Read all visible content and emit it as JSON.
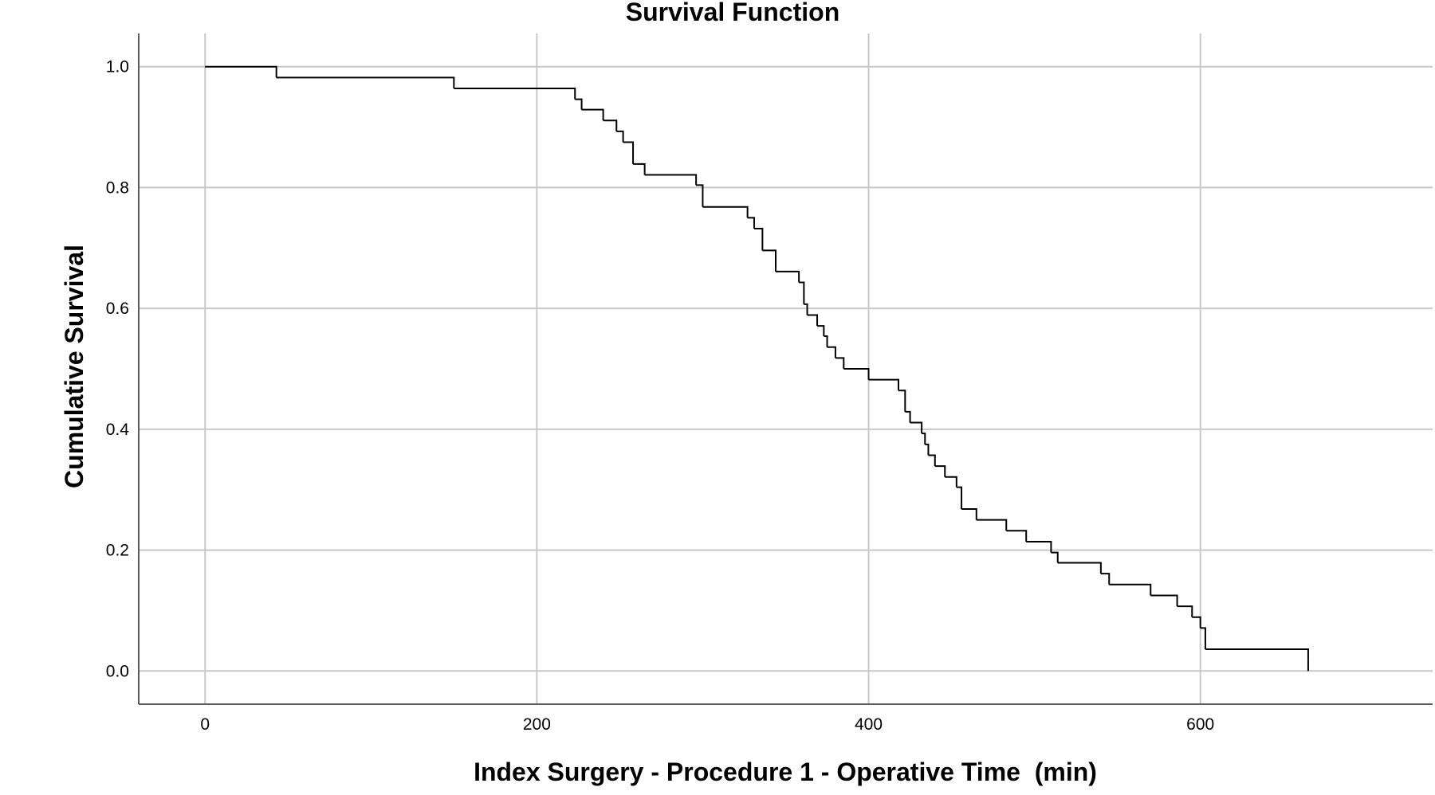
{
  "chart_data": {
    "type": "line",
    "title": "Survival Function",
    "xlabel": "Index Surgery - Procedure 1 - Operative Time  (min)",
    "ylabel": "Cumulative Survival",
    "xlim": [
      -40,
      740
    ],
    "ylim": [
      -0.055,
      1.055
    ],
    "x_ticks": [
      0,
      200,
      400,
      600
    ],
    "x_tick_labels": [
      "0",
      "200",
      "400",
      "600"
    ],
    "y_ticks": [
      0.0,
      0.2,
      0.4,
      0.6,
      0.8,
      1.0
    ],
    "y_tick_labels": [
      "0.0",
      "0.2",
      "0.4",
      "0.6",
      "0.8",
      "1.0"
    ],
    "grid": true,
    "step": true,
    "series": [
      {
        "x": [
          0,
          43,
          150,
          223,
          227,
          240,
          248,
          252,
          258,
          265,
          270,
          296,
          300,
          327,
          331,
          336,
          344,
          350,
          358,
          361,
          363,
          369,
          373,
          375,
          380,
          385,
          400,
          418,
          422,
          425,
          432,
          434,
          436,
          440,
          446,
          453,
          456,
          465,
          483,
          495,
          510,
          514,
          540,
          545,
          570,
          586,
          595,
          600,
          603,
          665
        ],
        "y": [
          1.0,
          0.982,
          0.964,
          0.946,
          0.929,
          0.911,
          0.893,
          0.875,
          0.839,
          0.821,
          0.821,
          0.804,
          0.768,
          0.75,
          0.732,
          0.696,
          0.661,
          0.661,
          0.643,
          0.607,
          0.589,
          0.571,
          0.554,
          0.536,
          0.518,
          0.5,
          0.482,
          0.464,
          0.429,
          0.411,
          0.393,
          0.375,
          0.357,
          0.339,
          0.321,
          0.304,
          0.268,
          0.25,
          0.232,
          0.214,
          0.196,
          0.179,
          0.161,
          0.143,
          0.125,
          0.107,
          0.089,
          0.071,
          0.036,
          0.018
        ]
      }
    ]
  }
}
